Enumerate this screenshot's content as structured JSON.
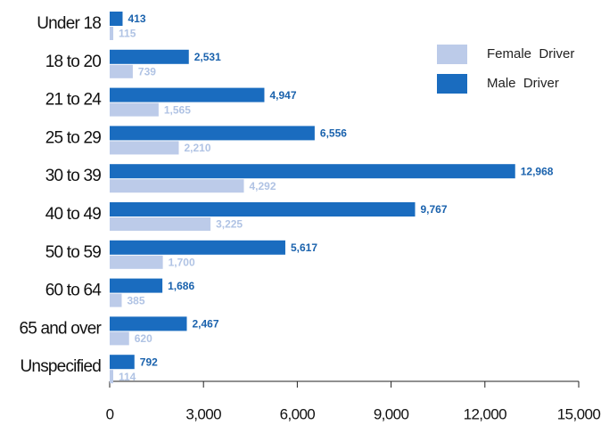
{
  "chart_data": {
    "type": "bar",
    "orientation": "horizontal",
    "categories": [
      "Under 18",
      "18 to 20",
      "21 to 24",
      "25 to 29",
      "30 to 39",
      "40 to 49",
      "50 to 59",
      "60 to 64",
      "65 and over",
      "Unspecified"
    ],
    "series": [
      {
        "name": "Male  Driver",
        "color": "#1a6cbf",
        "values": [
          413,
          2531,
          4947,
          6556,
          12968,
          9767,
          5617,
          1686,
          2467,
          792
        ],
        "value_labels": [
          "413",
          "2,531",
          "4,947",
          "6,556",
          "12,968",
          "9,767",
          "5,617",
          "1,686",
          "2,467",
          "792"
        ]
      },
      {
        "name": "Female  Driver",
        "color": "#bccbe9",
        "values": [
          115,
          739,
          1565,
          2210,
          4292,
          3225,
          1700,
          385,
          620,
          114
        ],
        "value_labels": [
          "115",
          "739",
          "1,565",
          "2,210",
          "4,292",
          "3,225",
          "1,700",
          "385",
          "620",
          "114"
        ]
      }
    ],
    "xlim": [
      0,
      15000
    ],
    "xticks": [
      0,
      {
        "value": 3000,
        "label": "3,000"
      },
      {
        "value": 6000,
        "label": "6,000"
      },
      {
        "value": 9000,
        "label": "9,000"
      },
      {
        "value": 12000,
        "label": "12,000"
      },
      {
        "value": 15000,
        "label": "15,000"
      }
    ],
    "legend": "upper right"
  }
}
